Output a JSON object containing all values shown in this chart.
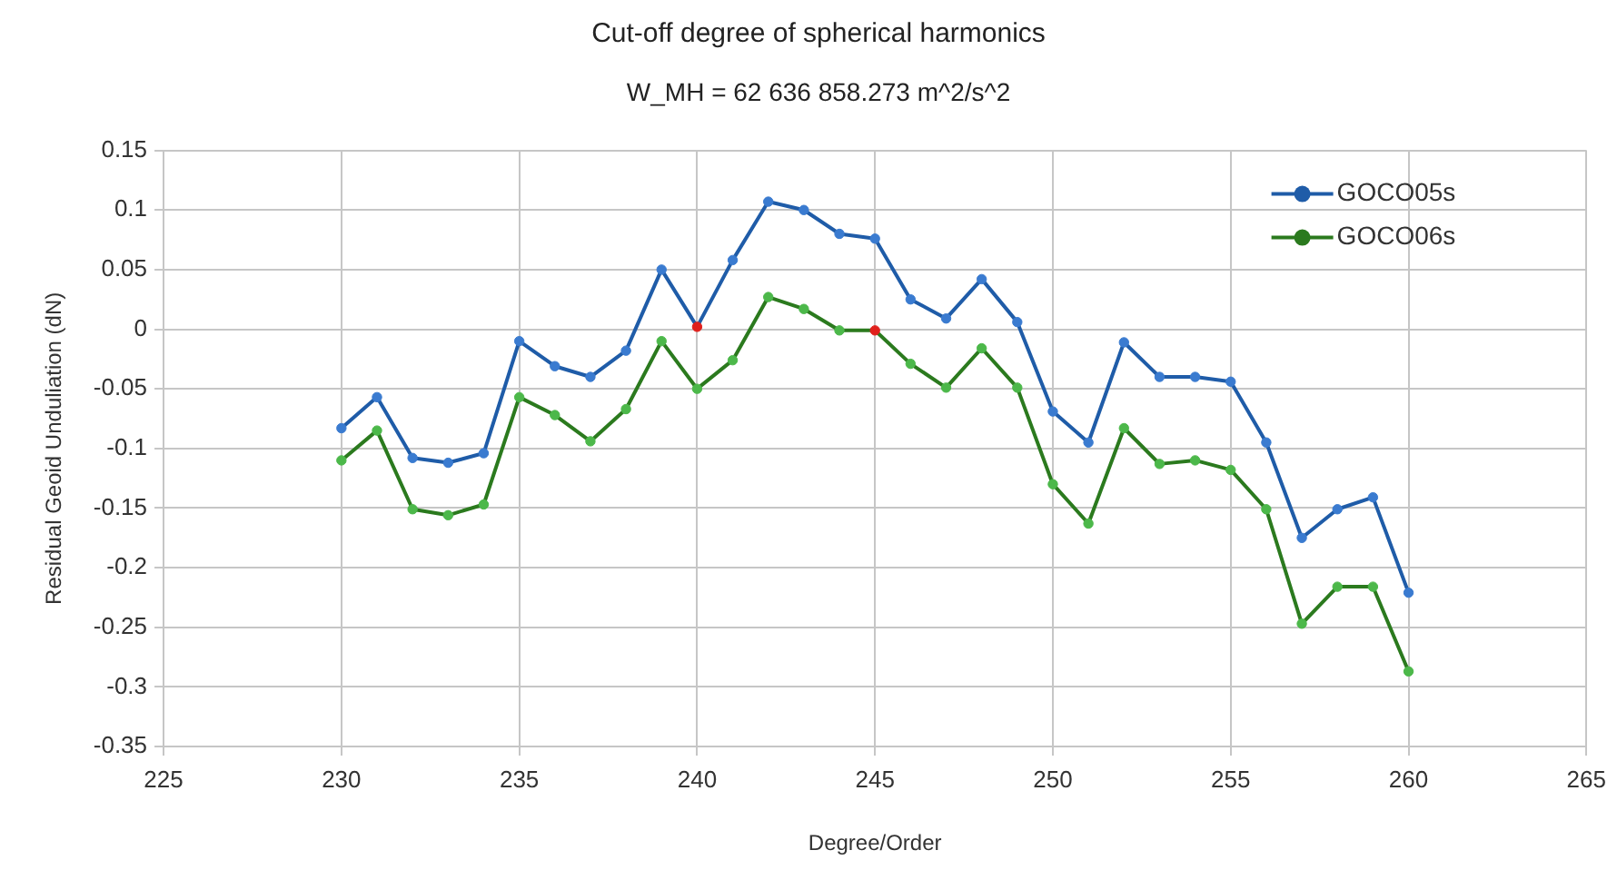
{
  "chart_data": {
    "type": "line",
    "title": "Cut-off degree of spherical harmonics",
    "subtitle": "W_MH = 62 636 858.273 m^2/s^2",
    "xlabel": "Degree/Order",
    "ylabel": "Residual Geoid Unduliation (dN)",
    "x": [
      230,
      231,
      232,
      233,
      234,
      235,
      236,
      237,
      238,
      239,
      240,
      241,
      242,
      243,
      244,
      245,
      246,
      247,
      248,
      249,
      250,
      251,
      252,
      253,
      254,
      255,
      256,
      257,
      258,
      259,
      260
    ],
    "series": [
      {
        "name": "GOCO05s",
        "color": "#1f5ca8",
        "values": [
          -0.083,
          -0.057,
          -0.108,
          -0.112,
          -0.104,
          -0.01,
          -0.031,
          -0.04,
          -0.018,
          0.05,
          0.002,
          0.058,
          0.107,
          0.1,
          0.08,
          0.076,
          0.025,
          0.009,
          0.042,
          0.006,
          -0.069,
          -0.095,
          -0.011,
          -0.04,
          -0.04,
          -0.044,
          -0.095,
          -0.175,
          -0.151,
          -0.141,
          -0.221
        ],
        "colors": [
          "#3a7bd0",
          "#3a7bd0",
          "#3a7bd0",
          "#3a7bd0",
          "#3a7bd0",
          "#3a7bd0",
          "#3a7bd0",
          "#3a7bd0",
          "#3a7bd0",
          "#3a7bd0",
          "#e0201c",
          "#3a7bd0",
          "#3a7bd0",
          "#3a7bd0",
          "#3a7bd0",
          "#3a7bd0",
          "#3a7bd0",
          "#3a7bd0",
          "#3a7bd0",
          "#3a7bd0",
          "#3a7bd0",
          "#3a7bd0",
          "#3a7bd0",
          "#3a7bd0",
          "#3a7bd0",
          "#3a7bd0",
          "#3a7bd0",
          "#3a7bd0",
          "#3a7bd0",
          "#3a7bd0",
          "#3a7bd0"
        ]
      },
      {
        "name": "GOCO06s",
        "color": "#2b7a1e",
        "values": [
          -0.11,
          -0.085,
          -0.151,
          -0.156,
          -0.147,
          -0.057,
          -0.072,
          -0.094,
          -0.067,
          -0.01,
          -0.05,
          -0.026,
          0.027,
          0.017,
          -0.001,
          -0.001,
          -0.029,
          -0.049,
          -0.016,
          -0.049,
          -0.13,
          -0.163,
          -0.083,
          -0.113,
          -0.11,
          -0.118,
          -0.151,
          -0.247,
          -0.216,
          -0.216,
          -0.287
        ],
        "colors": [
          "#4cb84a",
          "#4cb84a",
          "#4cb84a",
          "#4cb84a",
          "#4cb84a",
          "#4cb84a",
          "#4cb84a",
          "#4cb84a",
          "#4cb84a",
          "#4cb84a",
          "#4cb84a",
          "#4cb84a",
          "#4cb84a",
          "#4cb84a",
          "#4cb84a",
          "#e0201c",
          "#4cb84a",
          "#4cb84a",
          "#4cb84a",
          "#4cb84a",
          "#4cb84a",
          "#4cb84a",
          "#4cb84a",
          "#4cb84a",
          "#4cb84a",
          "#4cb84a",
          "#4cb84a",
          "#4cb84a",
          "#4cb84a",
          "#4cb84a",
          "#4cb84a"
        ]
      }
    ],
    "xlim": [
      225,
      265
    ],
    "xticks": [
      225,
      230,
      235,
      240,
      245,
      250,
      255,
      260,
      265
    ],
    "ylim": [
      -0.35,
      0.15
    ],
    "yticks": [
      -0.35,
      -0.3,
      -0.25,
      -0.2,
      -0.15,
      -0.1,
      -0.05,
      0,
      0.05,
      0.1,
      0.15
    ],
    "grid": true,
    "legend": "top right",
    "marker": "circle",
    "line_style": "solid"
  }
}
